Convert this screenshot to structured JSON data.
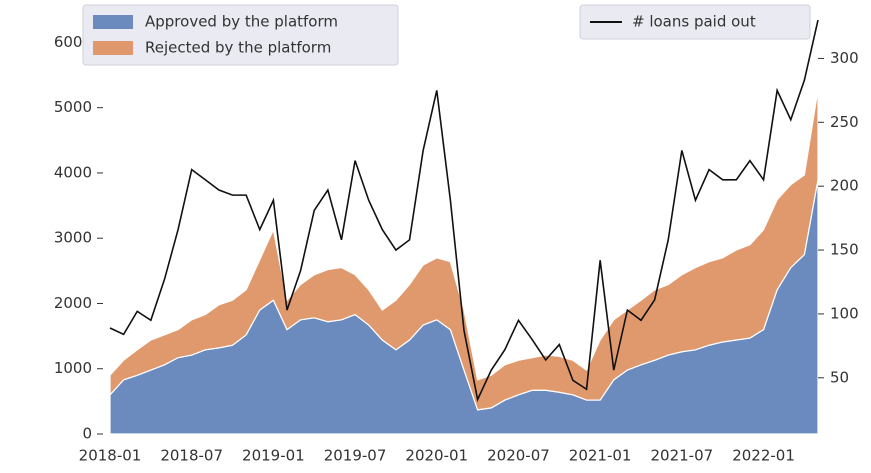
{
  "chart_data": {
    "type": "area",
    "x": [
      "2018-01",
      "2018-02",
      "2018-03",
      "2018-04",
      "2018-05",
      "2018-06",
      "2018-07",
      "2018-08",
      "2018-09",
      "2018-10",
      "2018-11",
      "2018-12",
      "2019-01",
      "2019-02",
      "2019-03",
      "2019-04",
      "2019-05",
      "2019-06",
      "2019-07",
      "2019-08",
      "2019-09",
      "2019-10",
      "2019-11",
      "2019-12",
      "2020-01",
      "2020-02",
      "2020-03",
      "2020-04",
      "2020-05",
      "2020-06",
      "2020-07",
      "2020-08",
      "2020-09",
      "2020-10",
      "2020-11",
      "2020-12",
      "2021-01",
      "2021-02",
      "2021-03",
      "2021-04",
      "2021-05",
      "2021-06",
      "2021-07",
      "2021-08",
      "2021-09",
      "2021-10",
      "2021-11",
      "2021-12",
      "2022-01",
      "2022-02",
      "2022-03",
      "2022-04",
      "2022-05"
    ],
    "series": [
      {
        "name": "Approved by the platform",
        "color": "#6b8bbf",
        "values": [
          600,
          830,
          900,
          980,
          1060,
          1170,
          1210,
          1290,
          1320,
          1360,
          1520,
          1900,
          2050,
          1600,
          1750,
          1780,
          1720,
          1750,
          1830,
          1670,
          1440,
          1290,
          1440,
          1670,
          1750,
          1600,
          980,
          370,
          400,
          520,
          600,
          670,
          670,
          640,
          600,
          520,
          520,
          830,
          980,
          1060,
          1130,
          1210,
          1260,
          1290,
          1360,
          1410,
          1440,
          1470,
          1600,
          2210,
          2550,
          2750,
          3900
        ]
      },
      {
        "name": "Rejected by the platform",
        "color": "#e0996d",
        "values": [
          300,
          300,
          390,
          460,
          460,
          430,
          540,
          540,
          660,
          690,
          690,
          770,
          1080,
          450,
          540,
          660,
          800,
          800,
          610,
          540,
          460,
          760,
          850,
          920,
          950,
          1040,
          920,
          460,
          500,
          540,
          530,
          500,
          540,
          550,
          530,
          460,
          920,
          920,
          920,
          990,
          1080,
          1080,
          1180,
          1260,
          1280,
          1290,
          1380,
          1430,
          1530,
          1380,
          1270,
          1220,
          1380
        ]
      },
      {
        "name": "# loans paid out",
        "color": "#111111",
        "type": "line",
        "axis": "y2",
        "values": [
          89,
          84,
          102,
          95,
          127,
          166,
          213,
          205,
          197,
          193,
          193,
          166,
          189,
          103,
          134,
          181,
          197,
          158,
          220,
          189,
          166,
          150,
          158,
          228,
          275,
          189,
          87,
          33,
          56,
          72,
          95,
          80,
          64,
          76,
          48,
          41,
          142,
          56,
          103,
          95,
          111,
          158,
          228,
          189,
          213,
          205,
          205,
          220,
          205,
          275,
          252,
          283,
          330
        ]
      }
    ],
    "stacked": true,
    "xlim": [
      "2018-01",
      "2022-05"
    ],
    "xticks": [
      "2018-01",
      "2018-07",
      "2019-01",
      "2019-07",
      "2020-01",
      "2020-07",
      "2021-01",
      "2021-07",
      "2022-01"
    ],
    "ylim": [
      0,
      6420
    ],
    "yticks": [
      0,
      1000,
      2000,
      3000,
      4000,
      5000,
      6000
    ],
    "y2lim": [
      6,
      334
    ],
    "y2ticks": [
      50,
      100,
      150,
      200,
      250,
      300
    ],
    "legend": "upper left",
    "legend2": "upper right"
  }
}
